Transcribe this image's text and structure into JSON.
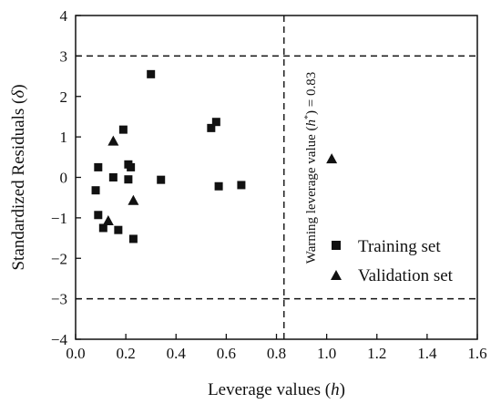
{
  "chart_data": {
    "type": "scatter",
    "xlabel": "Leverage values (",
    "xlabel_var": "h",
    "xlabel_end": ")",
    "ylabel": "Standardized Residuals (",
    "ylabel_var": "δ",
    "ylabel_end": ")",
    "xlim": [
      0.0,
      1.6
    ],
    "ylim": [
      -4,
      4
    ],
    "xticks": [
      0.0,
      0.2,
      0.4,
      0.6,
      0.8,
      1.0,
      1.2,
      1.4,
      1.6
    ],
    "xtick_labels": [
      "0.0",
      "0.2",
      "0.4",
      "0.6",
      "0.8",
      "1.0",
      "1.2",
      "1.4",
      "1.6"
    ],
    "yticks": [
      -4,
      -3,
      -2,
      -1,
      0,
      1,
      2,
      3,
      4
    ],
    "ytick_labels": [
      "−4",
      "−3",
      "−2",
      "−1",
      "0",
      "1",
      "2",
      "3",
      "4"
    ],
    "grid": false,
    "legend_position": "lower-right",
    "reference_lines": {
      "horizontal": [
        3,
        -3
      ],
      "vertical": [
        0.83
      ],
      "style": "dashed"
    },
    "annotation": {
      "text_before": "Warning leverage value (",
      "var": "h",
      "sup": "*",
      "text_after": ") = 0.83"
    },
    "series": [
      {
        "name": "Training set",
        "marker": "square",
        "points": [
          [
            0.08,
            -0.32
          ],
          [
            0.09,
            0.25
          ],
          [
            0.09,
            -0.93
          ],
          [
            0.11,
            -1.25
          ],
          [
            0.15,
            0.0
          ],
          [
            0.17,
            -1.3
          ],
          [
            0.19,
            1.18
          ],
          [
            0.21,
            0.32
          ],
          [
            0.21,
            -0.05
          ],
          [
            0.22,
            0.25
          ],
          [
            0.23,
            -1.52
          ],
          [
            0.3,
            2.55
          ],
          [
            0.34,
            -0.06
          ],
          [
            0.54,
            1.22
          ],
          [
            0.56,
            1.37
          ],
          [
            0.57,
            -0.22
          ],
          [
            0.66,
            -0.19
          ]
        ]
      },
      {
        "name": "Validation set",
        "marker": "triangle",
        "points": [
          [
            0.13,
            -1.07
          ],
          [
            0.15,
            0.9
          ],
          [
            0.23,
            -0.57
          ],
          [
            1.02,
            0.46
          ]
        ]
      }
    ]
  }
}
